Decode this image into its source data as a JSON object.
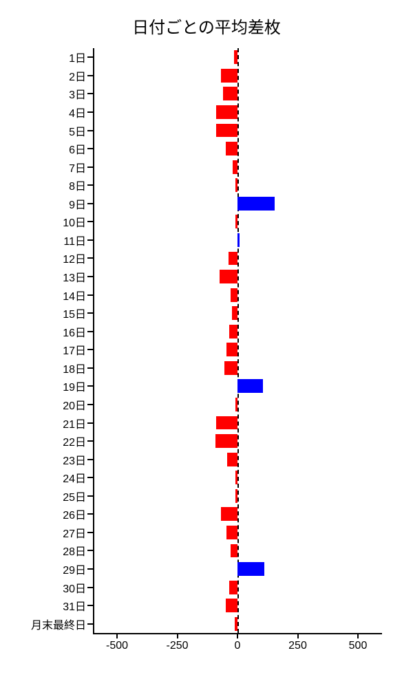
{
  "chart": {
    "type": "bar-horizontal",
    "title": "日付ごとの平均差枚",
    "title_fontsize": 24,
    "background_color": "#ffffff",
    "text_color": "#000000",
    "positive_color": "#0000ff",
    "negative_color": "#ff0000",
    "xlim": [
      -600,
      600
    ],
    "xtick_step": 250,
    "xticks": [
      -500,
      -250,
      0,
      250,
      500
    ],
    "bar_height_ratio": 0.75,
    "zero_line_dashed": true,
    "categories": [
      "1日",
      "2日",
      "3日",
      "4日",
      "5日",
      "6日",
      "7日",
      "8日",
      "9日",
      "10日",
      "11日",
      "12日",
      "13日",
      "14日",
      "15日",
      "16日",
      "17日",
      "18日",
      "19日",
      "20日",
      "21日",
      "22日",
      "23日",
      "24日",
      "25日",
      "26日",
      "27日",
      "28日",
      "29日",
      "30日",
      "31日",
      "月末最終日"
    ],
    "values": [
      -14,
      -70,
      -60,
      -90,
      -90,
      -48,
      -20,
      -10,
      155,
      -10,
      8,
      -38,
      -75,
      -30,
      -22,
      -35,
      -45,
      -55,
      105,
      -10,
      -90,
      -92,
      -42,
      -8,
      -8,
      -70,
      -45,
      -30,
      110,
      -35,
      -48,
      -12
    ]
  }
}
